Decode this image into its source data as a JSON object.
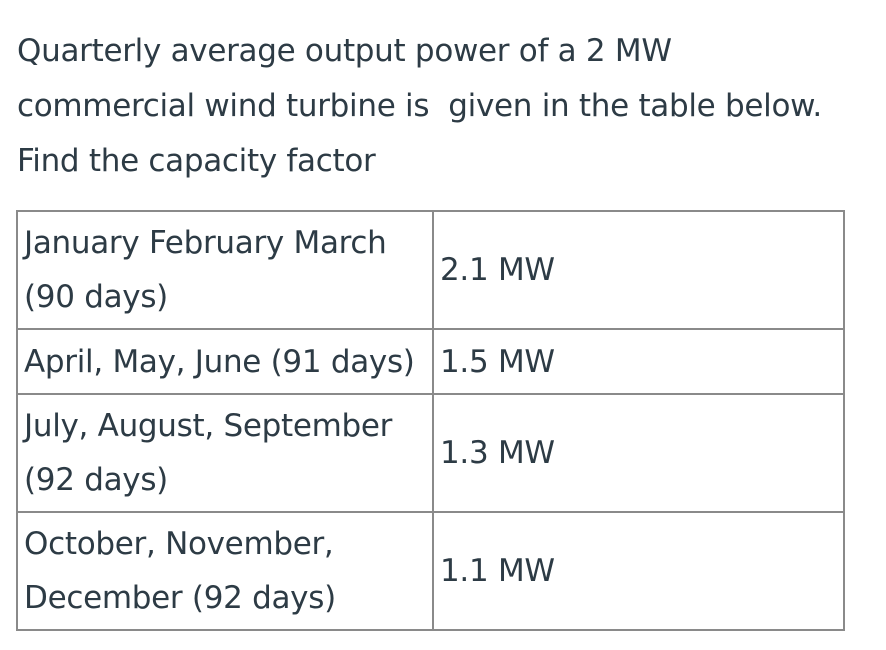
{
  "question": {
    "lines": [
      "Quarterly average output power of a 2 MW",
      "commercial wind turbine is  given in the table below.",
      "Find the capacity factor"
    ]
  },
  "table": {
    "rows": [
      {
        "period": [
          "January February March",
          "(90 days)"
        ],
        "power": "2.1 MW"
      },
      {
        "period": [
          "April, May, June (91 days)"
        ],
        "power": "1.5 MW"
      },
      {
        "period": [
          "July, August, September",
          "(92 days)"
        ],
        "power": "1.3 MW"
      },
      {
        "period": [
          "October, November,",
          "December (92 days)"
        ],
        "power": "1.1 MW"
      }
    ]
  }
}
